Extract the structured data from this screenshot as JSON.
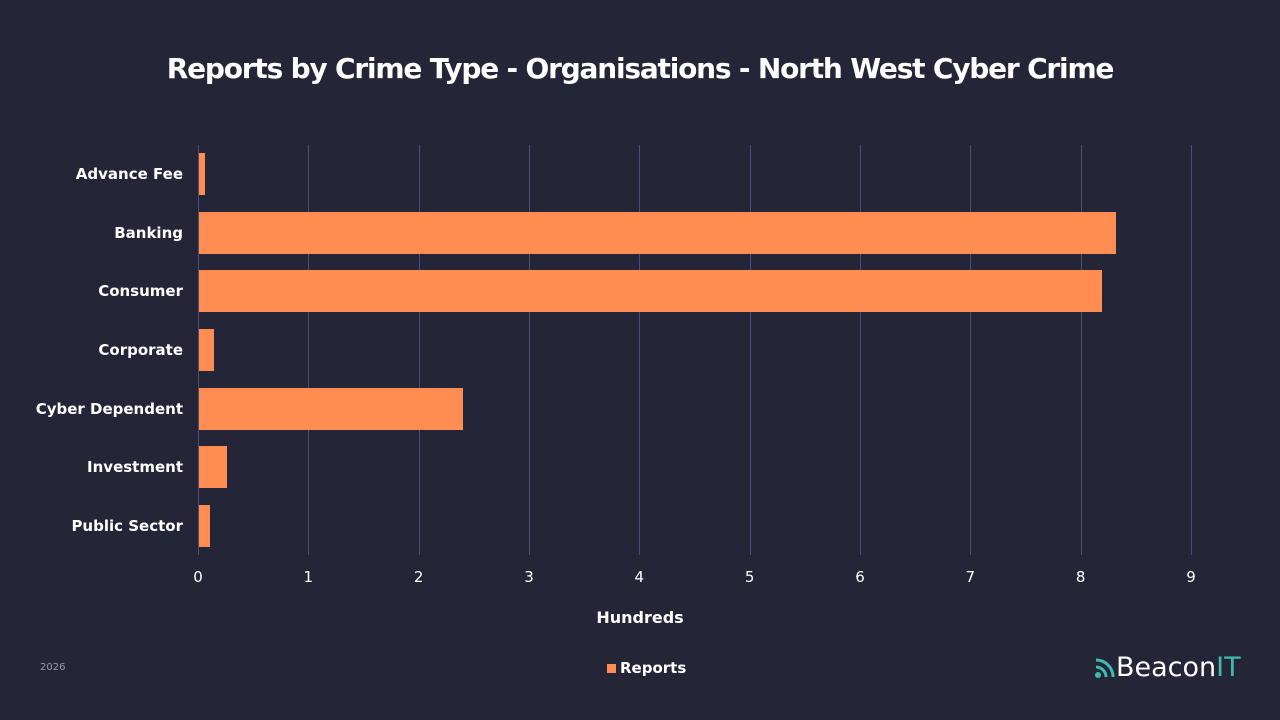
{
  "title": "Reports by Crime Type - Organisations - North West Cyber Crime",
  "footer": {
    "year": "2026",
    "brand_main": "Beacon",
    "brand_accent": "IT"
  },
  "colors": {
    "background": "#252538",
    "bar": "#ff8c50",
    "grid": "#4e4e72",
    "brand_accent": "#3dbdb0"
  },
  "chart_data": {
    "type": "bar",
    "orientation": "horizontal",
    "title": "Reports by Crime Type - Organisations - North West Cyber Crime",
    "xlabel": "Hundreds",
    "ylabel": "",
    "categories": [
      "Advance Fee",
      "Banking",
      "Consumer",
      "Corporate",
      "Cyber Dependent",
      "Investment",
      "Public Sector"
    ],
    "series": [
      {
        "name": "Reports",
        "values": [
          0.05,
          8.31,
          8.18,
          0.14,
          2.39,
          0.25,
          0.1
        ]
      }
    ],
    "xlim": [
      0,
      9
    ],
    "xticks": [
      "0",
      "1",
      "2",
      "3",
      "4",
      "5",
      "6",
      "7",
      "8",
      "9"
    ],
    "grid": true,
    "legend_position": "bottom"
  }
}
